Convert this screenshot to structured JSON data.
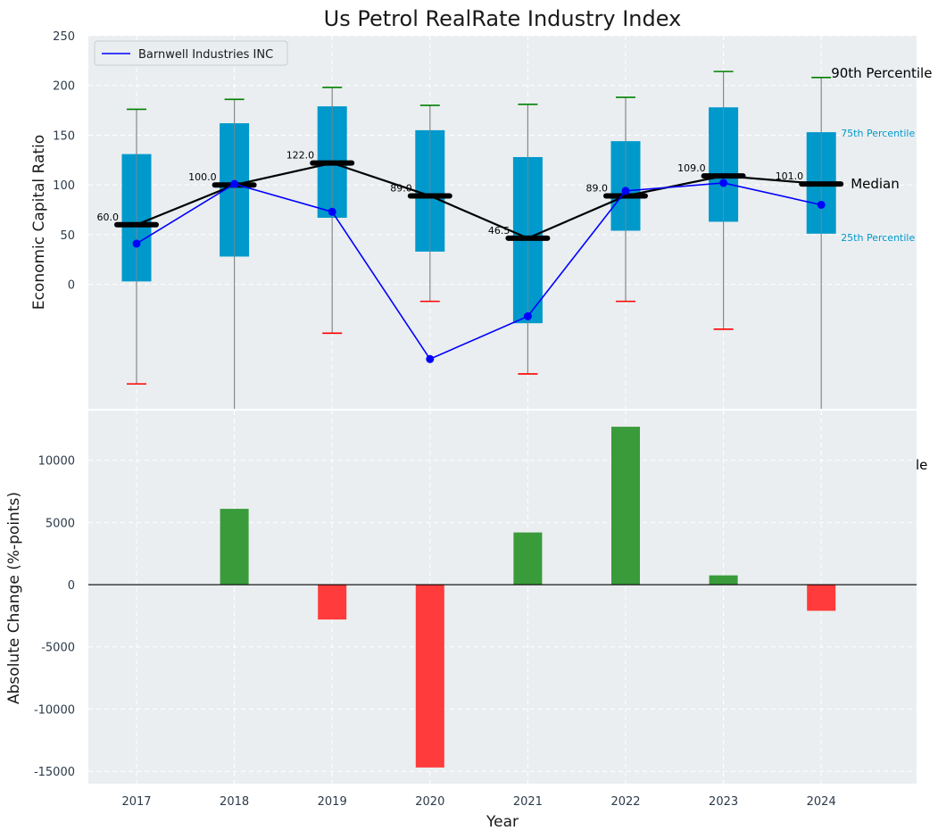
{
  "title": "Us Petrol RealRate Industry Index",
  "chart_data": [
    {
      "type": "box",
      "ylabel": "Economic Capital Ratio",
      "ylim": [
        -125,
        250
      ],
      "yticks": [
        0,
        50,
        100,
        150,
        200,
        250
      ],
      "categories": [
        "2017",
        "2018",
        "2019",
        "2020",
        "2021",
        "2022",
        "2023",
        "2024"
      ],
      "p10": [
        -100,
        -135,
        -49,
        -17,
        -90,
        -17,
        -45,
        -135
      ],
      "p25": [
        3,
        28,
        67,
        33,
        -39,
        54,
        63,
        51
      ],
      "median": [
        60.0,
        100.0,
        122.0,
        89.0,
        46.5,
        89.0,
        109.0,
        101.0
      ],
      "median_labels": [
        "60.0",
        "100.0",
        "122.0",
        "89.0",
        "46.5",
        "89.0",
        "109.0",
        "101.0"
      ],
      "p75": [
        131,
        162,
        179,
        155,
        128,
        144,
        178,
        153
      ],
      "p90": [
        176,
        186,
        198,
        180,
        181,
        188,
        214,
        208
      ],
      "series": [
        {
          "name": "Barnwell Industries INC",
          "color": "#0000ff",
          "values": [
            41,
            101,
            73,
            -75,
            -32,
            94,
            102,
            80
          ]
        }
      ],
      "legend": {
        "label": "Barnwell Industries INC",
        "location": "top-left"
      },
      "annotations": {
        "p90": "90th Percentile",
        "p75": "75th Percentile",
        "median": "Median",
        "p25": "25th Percentile"
      }
    },
    {
      "type": "bar",
      "xlabel": "Year",
      "ylabel": "Absolute Change (%-points)",
      "ylim": [
        -16000,
        14000
      ],
      "yticks": [
        -15000,
        -10000,
        -5000,
        0,
        5000,
        10000
      ],
      "categories": [
        "2017",
        "2018",
        "2019",
        "2020",
        "2021",
        "2022",
        "2023",
        "2024"
      ],
      "values": [
        0,
        6100,
        -2800,
        -14700,
        4200,
        12700,
        750,
        -2100
      ],
      "positive_color": "#3a9b3a",
      "negative_color": "#ff3b3b",
      "clipped_annotation": "le"
    }
  ]
}
